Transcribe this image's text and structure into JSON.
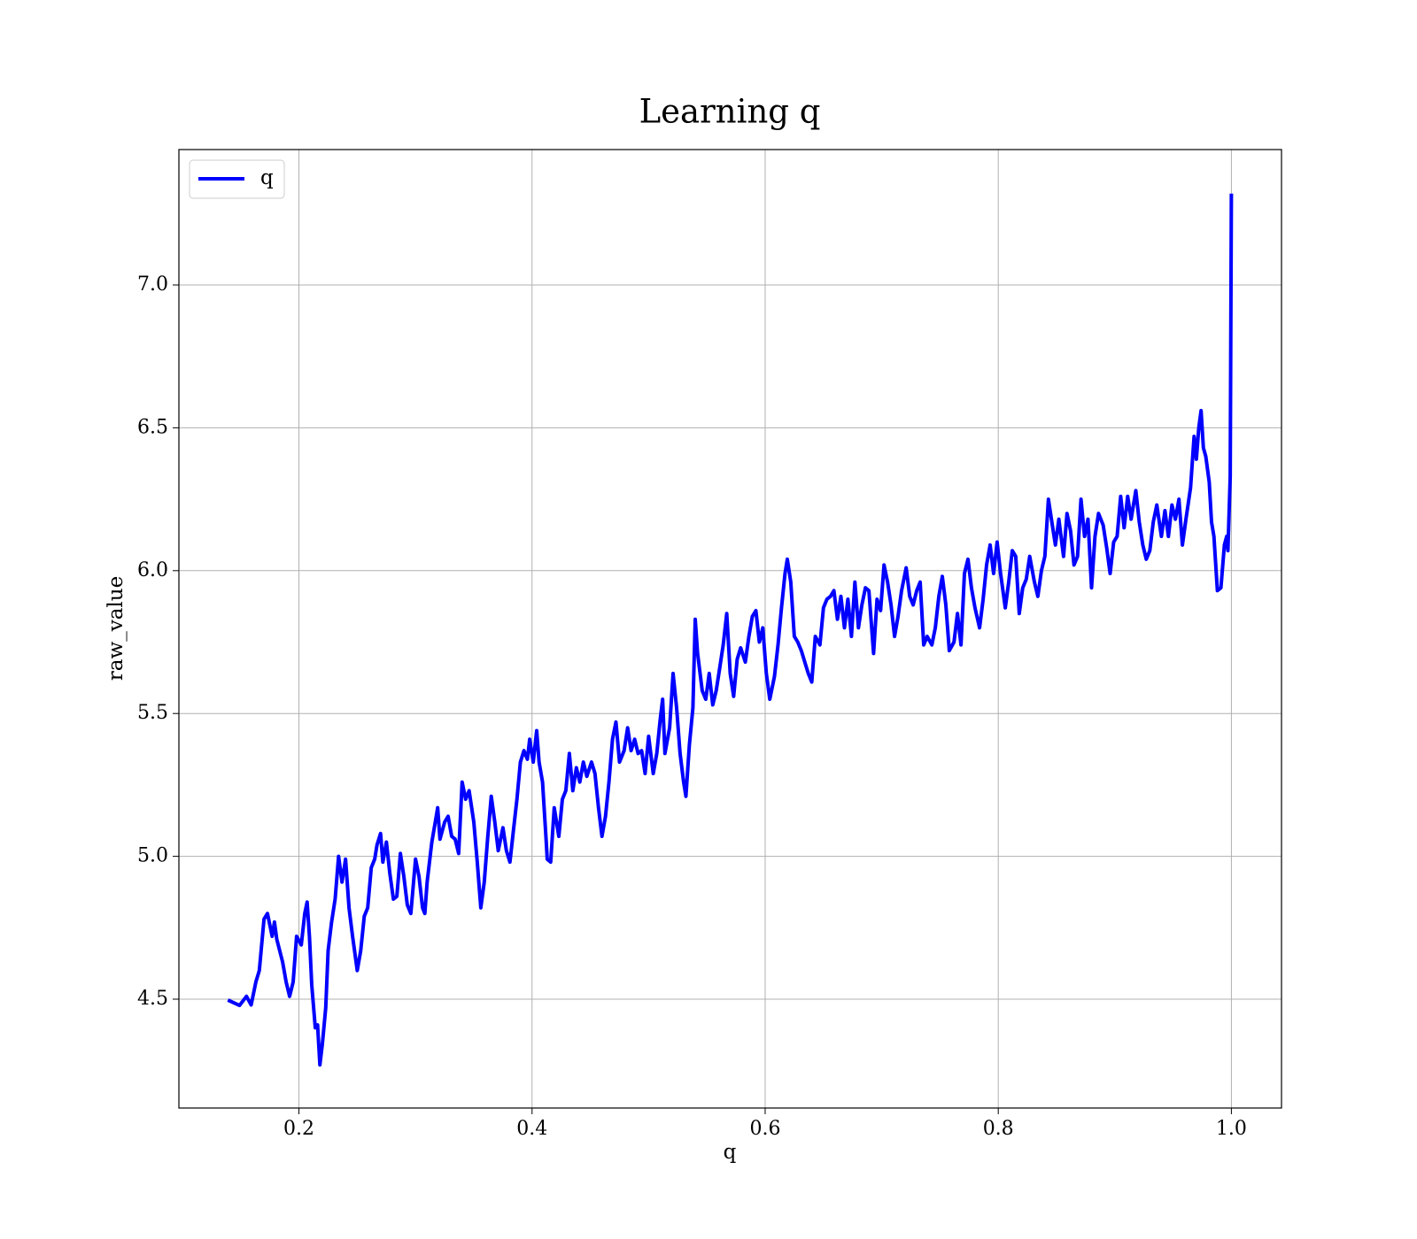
{
  "chart_data": {
    "type": "line",
    "title": "Learning q",
    "xlabel": "q",
    "ylabel": "raw_value",
    "x": [
      0.139,
      0.149,
      0.155,
      0.159,
      0.163,
      0.166,
      0.17,
      0.173,
      0.177,
      0.179,
      0.181,
      0.186,
      0.189,
      0.192,
      0.195,
      0.198,
      0.202,
      0.205,
      0.207,
      0.209,
      0.211,
      0.214,
      0.216,
      0.218,
      0.22,
      0.223,
      0.225,
      0.228,
      0.231,
      0.234,
      0.237,
      0.24,
      0.243,
      0.246,
      0.25,
      0.253,
      0.256,
      0.259,
      0.262,
      0.265,
      0.267,
      0.27,
      0.272,
      0.275,
      0.278,
      0.281,
      0.284,
      0.287,
      0.29,
      0.293,
      0.296,
      0.3,
      0.303,
      0.306,
      0.308,
      0.31,
      0.314,
      0.317,
      0.319,
      0.321,
      0.325,
      0.328,
      0.331,
      0.334,
      0.337,
      0.34,
      0.343,
      0.346,
      0.35,
      0.353,
      0.356,
      0.359,
      0.362,
      0.365,
      0.368,
      0.371,
      0.375,
      0.378,
      0.381,
      0.384,
      0.387,
      0.39,
      0.393,
      0.396,
      0.398,
      0.401,
      0.404,
      0.406,
      0.409,
      0.412,
      0.413,
      0.416,
      0.419,
      0.423,
      0.426,
      0.429,
      0.432,
      0.435,
      0.438,
      0.441,
      0.444,
      0.447,
      0.451,
      0.454,
      0.457,
      0.46,
      0.463,
      0.466,
      0.469,
      0.472,
      0.475,
      0.479,
      0.482,
      0.485,
      0.488,
      0.491,
      0.494,
      0.497,
      0.5,
      0.504,
      0.507,
      0.51,
      0.512,
      0.514,
      0.518,
      0.521,
      0.524,
      0.527,
      0.53,
      0.532,
      0.535,
      0.538,
      0.54,
      0.542,
      0.546,
      0.549,
      0.552,
      0.555,
      0.558,
      0.561,
      0.564,
      0.567,
      0.57,
      0.573,
      0.576,
      0.579,
      0.583,
      0.586,
      0.589,
      0.592,
      0.595,
      0.598,
      0.601,
      0.604,
      0.608,
      0.611,
      0.614,
      0.617,
      0.619,
      0.622,
      0.625,
      0.628,
      0.631,
      0.634,
      0.637,
      0.64,
      0.643,
      0.647,
      0.65,
      0.653,
      0.656,
      0.659,
      0.662,
      0.665,
      0.668,
      0.671,
      0.674,
      0.677,
      0.68,
      0.683,
      0.686,
      0.689,
      0.693,
      0.696,
      0.699,
      0.702,
      0.705,
      0.708,
      0.711,
      0.714,
      0.717,
      0.721,
      0.724,
      0.727,
      0.73,
      0.733,
      0.736,
      0.739,
      0.743,
      0.746,
      0.749,
      0.752,
      0.755,
      0.758,
      0.762,
      0.765,
      0.768,
      0.771,
      0.774,
      0.777,
      0.78,
      0.784,
      0.787,
      0.79,
      0.793,
      0.796,
      0.799,
      0.802,
      0.806,
      0.809,
      0.812,
      0.815,
      0.818,
      0.821,
      0.824,
      0.827,
      0.831,
      0.834,
      0.837,
      0.84,
      0.843,
      0.846,
      0.849,
      0.852,
      0.856,
      0.859,
      0.862,
      0.865,
      0.868,
      0.871,
      0.874,
      0.877,
      0.88,
      0.883,
      0.886,
      0.89,
      0.893,
      0.896,
      0.899,
      0.902,
      0.905,
      0.908,
      0.911,
      0.914,
      0.918,
      0.921,
      0.924,
      0.927,
      0.93,
      0.933,
      0.936,
      0.94,
      0.943,
      0.946,
      0.949,
      0.952,
      0.955,
      0.958,
      0.961,
      0.965,
      0.968,
      0.97,
      0.972,
      0.974,
      0.976,
      0.978,
      0.981,
      0.983,
      0.985,
      0.988,
      0.991,
      0.994,
      0.996,
      0.997,
      0.999,
      1.0
    ],
    "series": [
      {
        "name": "q",
        "color": "#0000ff",
        "values": [
          4.497,
          4.478,
          4.51,
          4.48,
          4.56,
          4.6,
          4.78,
          4.8,
          4.72,
          4.77,
          4.71,
          4.63,
          4.56,
          4.51,
          4.56,
          4.72,
          4.69,
          4.8,
          4.84,
          4.72,
          4.55,
          4.4,
          4.41,
          4.27,
          4.34,
          4.47,
          4.67,
          4.77,
          4.85,
          5.0,
          4.91,
          4.99,
          4.82,
          4.72,
          4.6,
          4.67,
          4.79,
          4.82,
          4.96,
          4.99,
          5.04,
          5.08,
          4.98,
          5.05,
          4.94,
          4.85,
          4.86,
          5.01,
          4.93,
          4.83,
          4.8,
          4.99,
          4.93,
          4.82,
          4.8,
          4.91,
          5.05,
          5.12,
          5.17,
          5.06,
          5.12,
          5.14,
          5.07,
          5.06,
          5.01,
          5.26,
          5.2,
          5.23,
          5.12,
          4.98,
          4.82,
          4.91,
          5.07,
          5.21,
          5.12,
          5.02,
          5.1,
          5.02,
          4.98,
          5.09,
          5.2,
          5.33,
          5.37,
          5.34,
          5.41,
          5.33,
          5.44,
          5.33,
          5.26,
          5.06,
          4.99,
          4.98,
          5.17,
          5.07,
          5.2,
          5.23,
          5.36,
          5.23,
          5.31,
          5.26,
          5.33,
          5.28,
          5.33,
          5.29,
          5.17,
          5.07,
          5.14,
          5.26,
          5.41,
          5.47,
          5.33,
          5.37,
          5.45,
          5.37,
          5.41,
          5.36,
          5.37,
          5.29,
          5.42,
          5.29,
          5.36,
          5.48,
          5.55,
          5.36,
          5.45,
          5.64,
          5.52,
          5.36,
          5.26,
          5.21,
          5.39,
          5.52,
          5.83,
          5.71,
          5.58,
          5.55,
          5.64,
          5.53,
          5.58,
          5.66,
          5.74,
          5.85,
          5.64,
          5.56,
          5.69,
          5.73,
          5.68,
          5.77,
          5.84,
          5.86,
          5.75,
          5.8,
          5.64,
          5.55,
          5.63,
          5.74,
          5.87,
          5.99,
          6.04,
          5.96,
          5.77,
          5.75,
          5.72,
          5.68,
          5.64,
          5.61,
          5.77,
          5.74,
          5.87,
          5.9,
          5.91,
          5.93,
          5.83,
          5.91,
          5.8,
          5.9,
          5.77,
          5.96,
          5.8,
          5.88,
          5.94,
          5.93,
          5.71,
          5.9,
          5.86,
          6.02,
          5.96,
          5.88,
          5.77,
          5.84,
          5.93,
          6.01,
          5.91,
          5.88,
          5.93,
          5.96,
          5.74,
          5.77,
          5.74,
          5.8,
          5.91,
          5.98,
          5.88,
          5.72,
          5.75,
          5.85,
          5.74,
          5.99,
          6.04,
          5.94,
          5.87,
          5.8,
          5.9,
          6.02,
          6.09,
          5.99,
          6.1,
          5.99,
          5.87,
          5.96,
          6.07,
          6.05,
          5.85,
          5.94,
          5.97,
          6.05,
          5.96,
          5.91,
          6.0,
          6.05,
          6.25,
          6.17,
          6.09,
          6.18,
          6.05,
          6.2,
          6.14,
          6.02,
          6.05,
          6.25,
          6.12,
          6.18,
          5.94,
          6.12,
          6.2,
          6.16,
          6.08,
          5.99,
          6.1,
          6.12,
          6.26,
          6.15,
          6.26,
          6.18,
          6.28,
          6.17,
          6.09,
          6.04,
          6.07,
          6.17,
          6.23,
          6.12,
          6.21,
          6.12,
          6.23,
          6.18,
          6.25,
          6.09,
          6.18,
          6.29,
          6.47,
          6.39,
          6.5,
          6.56,
          6.43,
          6.4,
          6.31,
          6.17,
          6.12,
          5.93,
          5.94,
          6.09,
          6.12,
          6.07,
          6.33,
          7.32
        ]
      }
    ],
    "xlim": [
      0.097,
      1.043
    ],
    "ylim": [
      4.119,
      7.474
    ],
    "xticks": [
      0.2,
      0.4,
      0.6,
      0.8,
      {
        "value": 1,
        "label": "1.0"
      }
    ],
    "yticks": [
      4.5,
      {
        "value": 5,
        "label": "5.0"
      },
      5.5,
      {
        "value": 6,
        "label": "6.0"
      },
      6.5,
      {
        "value": 7,
        "label": "7.0"
      }
    ],
    "grid": true,
    "legend": "upper left"
  }
}
